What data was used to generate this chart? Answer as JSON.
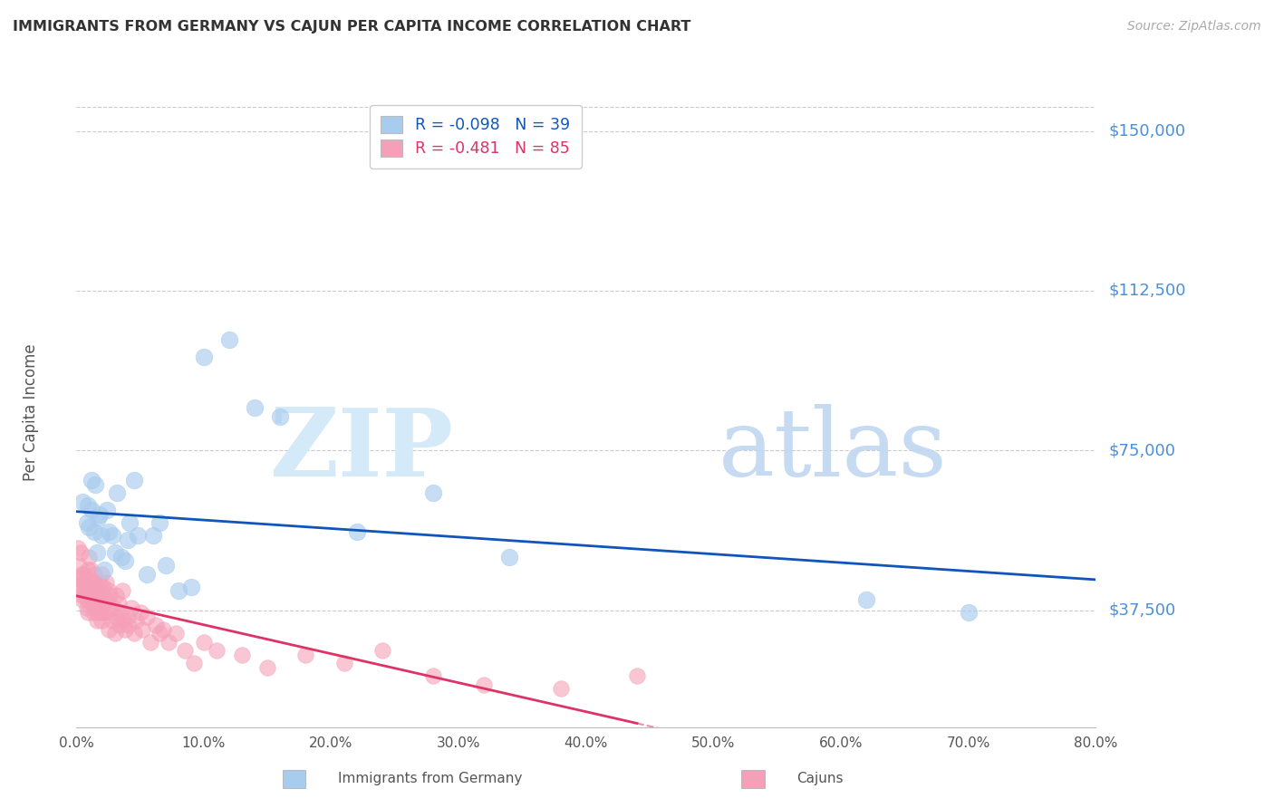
{
  "title": "IMMIGRANTS FROM GERMANY VS CAJUN PER CAPITA INCOME CORRELATION CHART",
  "source": "Source: ZipAtlas.com",
  "ylabel": "Per Capita Income",
  "ytick_values": [
    37500,
    75000,
    112500,
    150000
  ],
  "ytick_labels": [
    "$37,500",
    "$75,000",
    "$112,500",
    "$150,000"
  ],
  "ymin": 10000,
  "ymax": 158000,
  "xmin": 0.0,
  "xmax": 0.8,
  "blue_color": "#a8ccee",
  "pink_color": "#f5a0b8",
  "blue_line_color": "#1155bb",
  "pink_line_color": "#dd3366",
  "grid_color": "#cccccc",
  "title_color": "#333333",
  "ylabel_color": "#555555",
  "ytick_color": "#4a90d9",
  "source_color": "#aaaaaa",
  "R_blue": -0.098,
  "N_blue": 39,
  "R_pink": -0.481,
  "N_pink": 85,
  "blue_scatter_x": [
    0.005,
    0.008,
    0.009,
    0.01,
    0.012,
    0.012,
    0.014,
    0.015,
    0.016,
    0.017,
    0.018,
    0.02,
    0.022,
    0.024,
    0.025,
    0.028,
    0.03,
    0.032,
    0.035,
    0.038,
    0.04,
    0.042,
    0.045,
    0.048,
    0.055,
    0.06,
    0.065,
    0.07,
    0.08,
    0.09,
    0.1,
    0.12,
    0.14,
    0.16,
    0.22,
    0.28,
    0.34,
    0.62,
    0.7
  ],
  "blue_scatter_y": [
    63000,
    58000,
    62000,
    57000,
    61000,
    68000,
    56000,
    67000,
    51000,
    59000,
    60000,
    55000,
    47000,
    61000,
    56000,
    55000,
    51000,
    65000,
    50000,
    49000,
    54000,
    58000,
    68000,
    55000,
    46000,
    55000,
    58000,
    48000,
    42000,
    43000,
    97000,
    101000,
    85000,
    83000,
    56000,
    65000,
    50000,
    40000,
    37000
  ],
  "pink_scatter_x": [
    0.001,
    0.002,
    0.002,
    0.003,
    0.003,
    0.004,
    0.004,
    0.005,
    0.005,
    0.006,
    0.006,
    0.007,
    0.007,
    0.008,
    0.008,
    0.009,
    0.009,
    0.01,
    0.01,
    0.011,
    0.011,
    0.012,
    0.012,
    0.013,
    0.013,
    0.014,
    0.014,
    0.015,
    0.015,
    0.016,
    0.016,
    0.017,
    0.017,
    0.018,
    0.018,
    0.019,
    0.02,
    0.02,
    0.021,
    0.022,
    0.022,
    0.023,
    0.024,
    0.025,
    0.025,
    0.026,
    0.027,
    0.028,
    0.029,
    0.03,
    0.031,
    0.032,
    0.033,
    0.034,
    0.035,
    0.036,
    0.037,
    0.038,
    0.04,
    0.041,
    0.043,
    0.045,
    0.047,
    0.05,
    0.052,
    0.055,
    0.058,
    0.062,
    0.065,
    0.068,
    0.072,
    0.078,
    0.085,
    0.092,
    0.1,
    0.11,
    0.13,
    0.15,
    0.18,
    0.21,
    0.24,
    0.28,
    0.32,
    0.38,
    0.44
  ],
  "pink_scatter_y": [
    52000,
    48000,
    45000,
    51000,
    43000,
    46000,
    41000,
    44000,
    40000,
    46000,
    42000,
    41000,
    44000,
    40000,
    38000,
    47000,
    37000,
    50000,
    43000,
    47000,
    41000,
    44000,
    39000,
    44000,
    37000,
    46000,
    40000,
    42000,
    38000,
    35000,
    43000,
    41000,
    37000,
    44000,
    39000,
    37000,
    46000,
    35000,
    43000,
    39000,
    37000,
    44000,
    40000,
    42000,
    33000,
    41000,
    37000,
    35000,
    38000,
    32000,
    41000,
    36000,
    39000,
    34000,
    37000,
    42000,
    35000,
    33000,
    36000,
    34000,
    38000,
    32000,
    35000,
    37000,
    33000,
    36000,
    30000,
    34000,
    32000,
    33000,
    30000,
    32000,
    28000,
    25000,
    30000,
    28000,
    27000,
    24000,
    27000,
    25000,
    28000,
    22000,
    20000,
    19000,
    22000
  ]
}
